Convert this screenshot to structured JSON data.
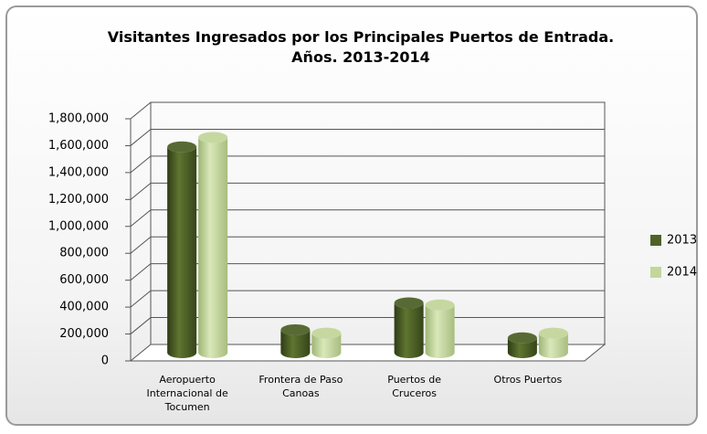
{
  "chart_data": {
    "type": "bar3d",
    "title": "Visitantes Ingresados por los Principales Puertos de Entrada.\nAños. 2013-2014",
    "categories": [
      "Aeropuerto\nInternacional de\nTocumen",
      "Frontera de Paso\nCanoas",
      "Puertos de\nCruceros",
      "Otros Puertos"
    ],
    "series": [
      {
        "name": "2013",
        "color": "#4f6228",
        "values": [
          1530000,
          170000,
          370000,
          110000
        ]
      },
      {
        "name": "2014",
        "color": "#c3d69b",
        "values": [
          1600000,
          145000,
          355000,
          145000
        ]
      }
    ],
    "ylim": [
      0,
      1800000
    ],
    "yticks": [
      0,
      {
        "value": 200000,
        "label": "200,000"
      },
      {
        "value": 400000,
        "label": "400,000"
      },
      {
        "value": 600000,
        "label": "600,000"
      },
      {
        "value": 800000,
        "label": "800,000"
      },
      {
        "value": 1000000,
        "label": "1,000,000"
      },
      {
        "value": 1200000,
        "label": "1,200,000"
      },
      {
        "value": 1400000,
        "label": "1,400,000"
      },
      {
        "value": 1600000,
        "label": "1,600,000"
      },
      {
        "value": 1800000,
        "label": "1,800,000"
      }
    ],
    "grid": true,
    "legend": "right"
  }
}
